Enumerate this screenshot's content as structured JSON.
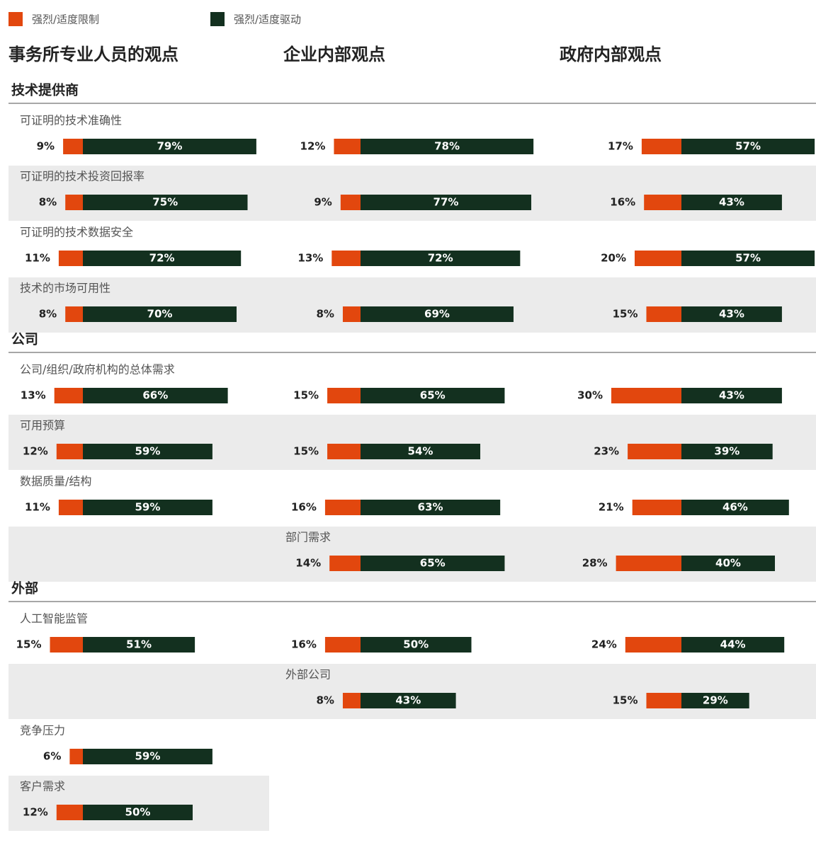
{
  "legend": [
    {
      "name": "强烈/适度限制",
      "color": "#e2470e"
    },
    {
      "name": "强烈/适度驱动",
      "color": "#13301f"
    }
  ],
  "columns": [
    "事务所专业人员的观点",
    "企业内部观点",
    "政府内部观点"
  ],
  "sections": [
    {
      "title": "技术提供商",
      "rows": [
        {
          "label": "可证明的技术准确性",
          "cells": [
            {
              "values": [
                9,
                79
              ],
              "value_labels": [
                "9%",
                "79%"
              ]
            },
            {
              "values": [
                12,
                78
              ],
              "value_labels": [
                "12%",
                "78%"
              ]
            },
            {
              "values": [
                17,
                57
              ],
              "value_labels": [
                "17%",
                "57%"
              ]
            }
          ]
        },
        {
          "label": "可证明的技术投资回报率",
          "cells": [
            {
              "values": [
                8,
                75
              ],
              "value_labels": [
                "8%",
                "75%"
              ]
            },
            {
              "values": [
                9,
                77
              ],
              "value_labels": [
                "9%",
                "77%"
              ]
            },
            {
              "values": [
                16,
                43
              ],
              "value_labels": [
                "16%",
                "43%"
              ]
            }
          ]
        },
        {
          "label": "可证明的技术数据安全",
          "cells": [
            {
              "values": [
                11,
                72
              ],
              "value_labels": [
                "11%",
                "72%"
              ]
            },
            {
              "values": [
                13,
                72
              ],
              "value_labels": [
                "13%",
                "72%"
              ]
            },
            {
              "values": [
                20,
                57
              ],
              "value_labels": [
                "20%",
                "57%"
              ]
            }
          ]
        },
        {
          "label": "技术的市场可用性",
          "cells": [
            {
              "values": [
                8,
                70
              ],
              "value_labels": [
                "8%",
                "70%"
              ]
            },
            {
              "values": [
                8,
                69
              ],
              "value_labels": [
                "8%",
                "69%"
              ]
            },
            {
              "values": [
                15,
                43
              ],
              "value_labels": [
                "15%",
                "43%"
              ]
            }
          ]
        }
      ]
    },
    {
      "title": "公司",
      "rows": [
        {
          "label": "公司/组织/政府机构的总体需求",
          "cells": [
            {
              "values": [
                13,
                66
              ],
              "value_labels": [
                "13%",
                "66%"
              ]
            },
            {
              "values": [
                15,
                65
              ],
              "value_labels": [
                "15%",
                "65%"
              ]
            },
            {
              "values": [
                30,
                43
              ],
              "value_labels": [
                "30%",
                "43%"
              ]
            }
          ]
        },
        {
          "label": "可用预算",
          "cells": [
            {
              "values": [
                12,
                59
              ],
              "value_labels": [
                "12%",
                "59%"
              ]
            },
            {
              "values": [
                15,
                54
              ],
              "value_labels": [
                "15%",
                "54%"
              ]
            },
            {
              "values": [
                23,
                39
              ],
              "value_labels": [
                "23%",
                "39%"
              ]
            }
          ]
        },
        {
          "label": "数据质量/结构",
          "cells": [
            {
              "values": [
                11,
                59
              ],
              "value_labels": [
                "11%",
                "59%"
              ]
            },
            {
              "values": [
                16,
                63
              ],
              "value_labels": [
                "16%",
                "63%"
              ]
            },
            {
              "values": [
                21,
                46
              ],
              "value_labels": [
                "21%",
                "46%"
              ]
            }
          ]
        },
        {
          "label": "部门需求",
          "cells": [
            null,
            {
              "values": [
                14,
                65
              ],
              "value_labels": [
                "14%",
                "65%"
              ]
            },
            {
              "values": [
                28,
                40
              ],
              "value_labels": [
                "28%",
                "40%"
              ]
            }
          ]
        }
      ]
    },
    {
      "title": "外部",
      "rows": [
        {
          "label": "人工智能监管",
          "cells": [
            {
              "values": [
                15,
                51
              ],
              "value_labels": [
                "15%",
                "51%"
              ]
            },
            {
              "values": [
                16,
                50
              ],
              "value_labels": [
                "16%",
                "50%"
              ]
            },
            {
              "values": [
                24,
                44
              ],
              "value_labels": [
                "24%",
                "44%"
              ]
            }
          ]
        },
        {
          "label": "外部公司",
          "cells": [
            null,
            {
              "values": [
                8,
                43
              ],
              "value_labels": [
                "8%",
                "43%"
              ]
            },
            {
              "values": [
                15,
                29
              ],
              "value_labels": [
                "15%",
                "29%"
              ]
            }
          ]
        },
        {
          "label": "竞争压力",
          "cells": [
            {
              "values": [
                6,
                59
              ],
              "value_labels": [
                "6%",
                "59%"
              ]
            },
            null,
            null
          ]
        },
        {
          "label": "客户需求",
          "cells": [
            {
              "values": [
                12,
                50
              ],
              "value_labels": [
                "12%",
                "50%"
              ]
            },
            null,
            null
          ]
        }
      ]
    }
  ]
}
